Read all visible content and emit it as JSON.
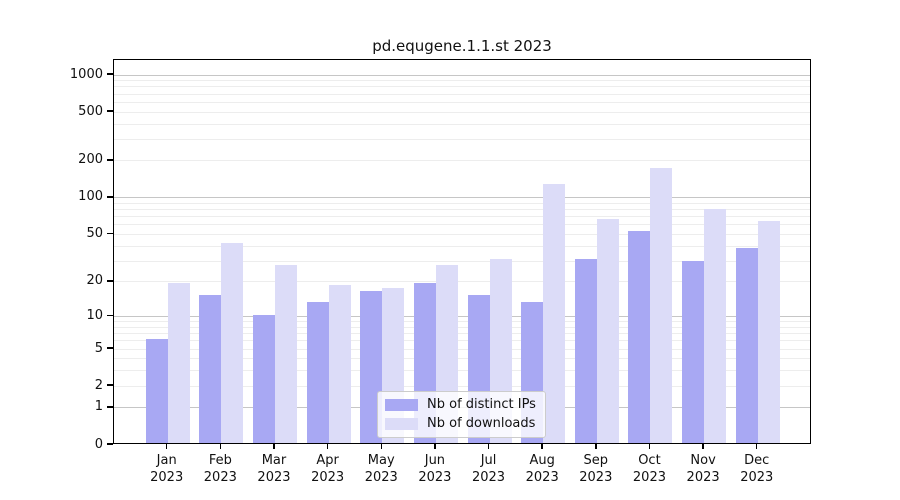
{
  "chart_data": {
    "type": "bar",
    "title": "pd.equgene.1.1.st 2023",
    "categories": [
      "Jan 2023",
      "Feb 2023",
      "Mar 2023",
      "Apr 2023",
      "May 2023",
      "Jun 2023",
      "Jul 2023",
      "Aug 2023",
      "Sep 2023",
      "Oct 2023",
      "Nov 2023",
      "Dec 2023"
    ],
    "series": [
      {
        "name": "Nb of distinct IPs",
        "color": "#a8a8f3",
        "values": [
          6,
          15,
          10,
          13,
          16,
          19,
          15,
          13,
          30,
          51,
          29,
          37
        ]
      },
      {
        "name": "Nb of downloads",
        "color": "#dcdcf8",
        "values": [
          19,
          41,
          27,
          18,
          17,
          27,
          30,
          125,
          65,
          170,
          78,
          62
        ]
      }
    ],
    "xlabel": "",
    "ylabel": "",
    "y_scale": "log10(1+v)",
    "y_ticks": [
      0,
      1,
      2,
      5,
      10,
      20,
      50,
      100,
      200,
      500,
      1000
    ],
    "y_minor_gridlines": [
      2,
      3,
      4,
      5,
      6,
      7,
      8,
      9,
      20,
      30,
      40,
      50,
      60,
      70,
      80,
      90,
      200,
      300,
      400,
      500,
      600,
      700,
      800,
      900
    ],
    "y_major_gridlines": [
      1,
      10,
      100,
      1000
    ],
    "ylim": [
      0,
      1325
    ],
    "grid": "horizontal",
    "legend_position": "lower-center",
    "colors": {
      "background": "#ffffff",
      "spine": "#000000",
      "major_grid": "#c6c6c6",
      "minor_grid": "#ededed",
      "legend_border": "#cccccc"
    }
  }
}
